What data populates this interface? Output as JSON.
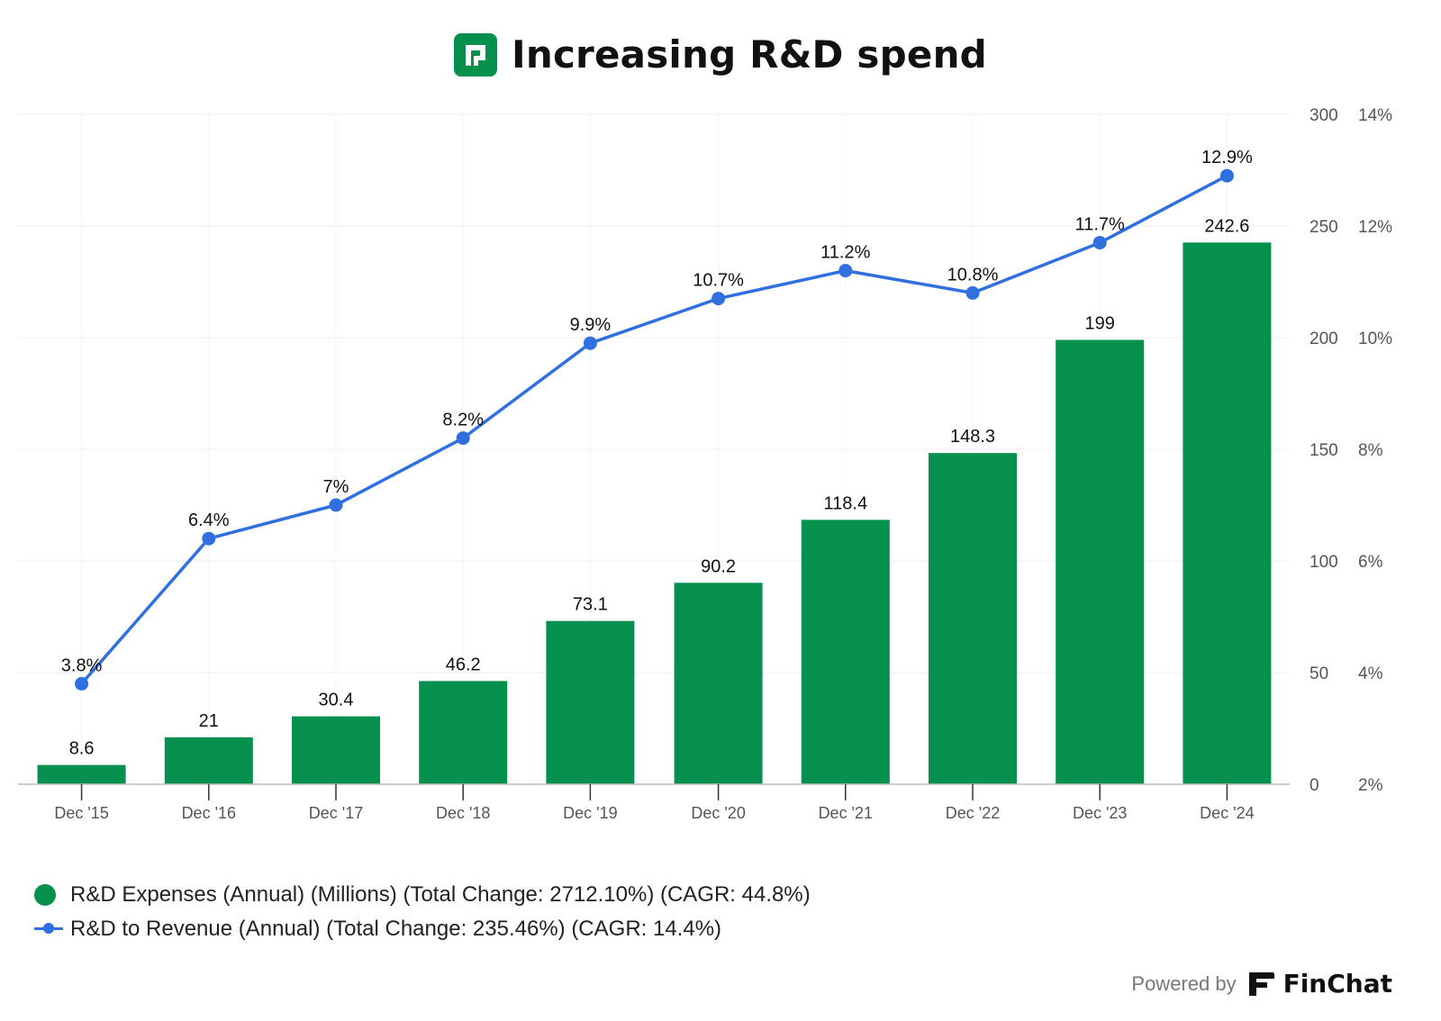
{
  "header": {
    "title": "Increasing R&D spend"
  },
  "colors": {
    "bar": "#05914d",
    "line": "#2f6fe0",
    "grid": "#eeeeee",
    "axis": "#bbbbbb",
    "tick_text": "#555555"
  },
  "chart_data": {
    "type": "bar",
    "title": "Increasing R&D spend",
    "categories": [
      "Dec '15",
      "Dec '16",
      "Dec '17",
      "Dec '18",
      "Dec '19",
      "Dec '20",
      "Dec '21",
      "Dec '22",
      "Dec '23",
      "Dec '24"
    ],
    "series": [
      {
        "name": "R&D Expenses (Annual) (Millions) (Total Change: 2712.10%) (CAGR: 44.8%)",
        "type": "bar",
        "axis": "left",
        "values": [
          8.6,
          21,
          30.4,
          46.2,
          73.1,
          90.2,
          118.4,
          148.3,
          199,
          242.6
        ],
        "labels": [
          "8.6",
          "21",
          "30.4",
          "46.2",
          "73.1",
          "90.2",
          "118.4",
          "148.3",
          "199",
          "242.6"
        ]
      },
      {
        "name": "R&D to Revenue (Annual) (Total Change: 235.46%) (CAGR: 14.4%)",
        "type": "line",
        "axis": "right",
        "values": [
          3.8,
          6.4,
          7.0,
          8.2,
          9.9,
          10.7,
          11.2,
          10.8,
          11.7,
          12.9
        ],
        "labels": [
          "3.8%",
          "6.4%",
          "7%",
          "8.2%",
          "9.9%",
          "10.7%",
          "11.2%",
          "10.8%",
          "11.7%",
          "12.9%"
        ]
      }
    ],
    "y_left": {
      "ylim": [
        0,
        300
      ],
      "ticks": [
        0,
        50,
        100,
        150,
        200,
        250,
        300
      ],
      "tick_labels": [
        "0",
        "50",
        "100",
        "150",
        "200",
        "250",
        "300"
      ]
    },
    "y_right": {
      "ylim": [
        2,
        14
      ],
      "ticks": [
        2,
        4,
        6,
        8,
        10,
        12,
        14
      ],
      "tick_labels": [
        "2%",
        "4%",
        "6%",
        "8%",
        "10%",
        "12%",
        "14%"
      ]
    },
    "grid": true,
    "legend_position": "bottom-left"
  },
  "legend": {
    "items": [
      {
        "label": "R&D Expenses (Annual) (Millions) (Total Change: 2712.10%) (CAGR: 44.8%)",
        "marker": "dot"
      },
      {
        "label": "R&D to Revenue (Annual) (Total Change: 235.46%) (CAGR: 14.4%)",
        "marker": "line"
      }
    ]
  },
  "footer": {
    "powered_by": "Powered by",
    "brand": "FinChat"
  }
}
